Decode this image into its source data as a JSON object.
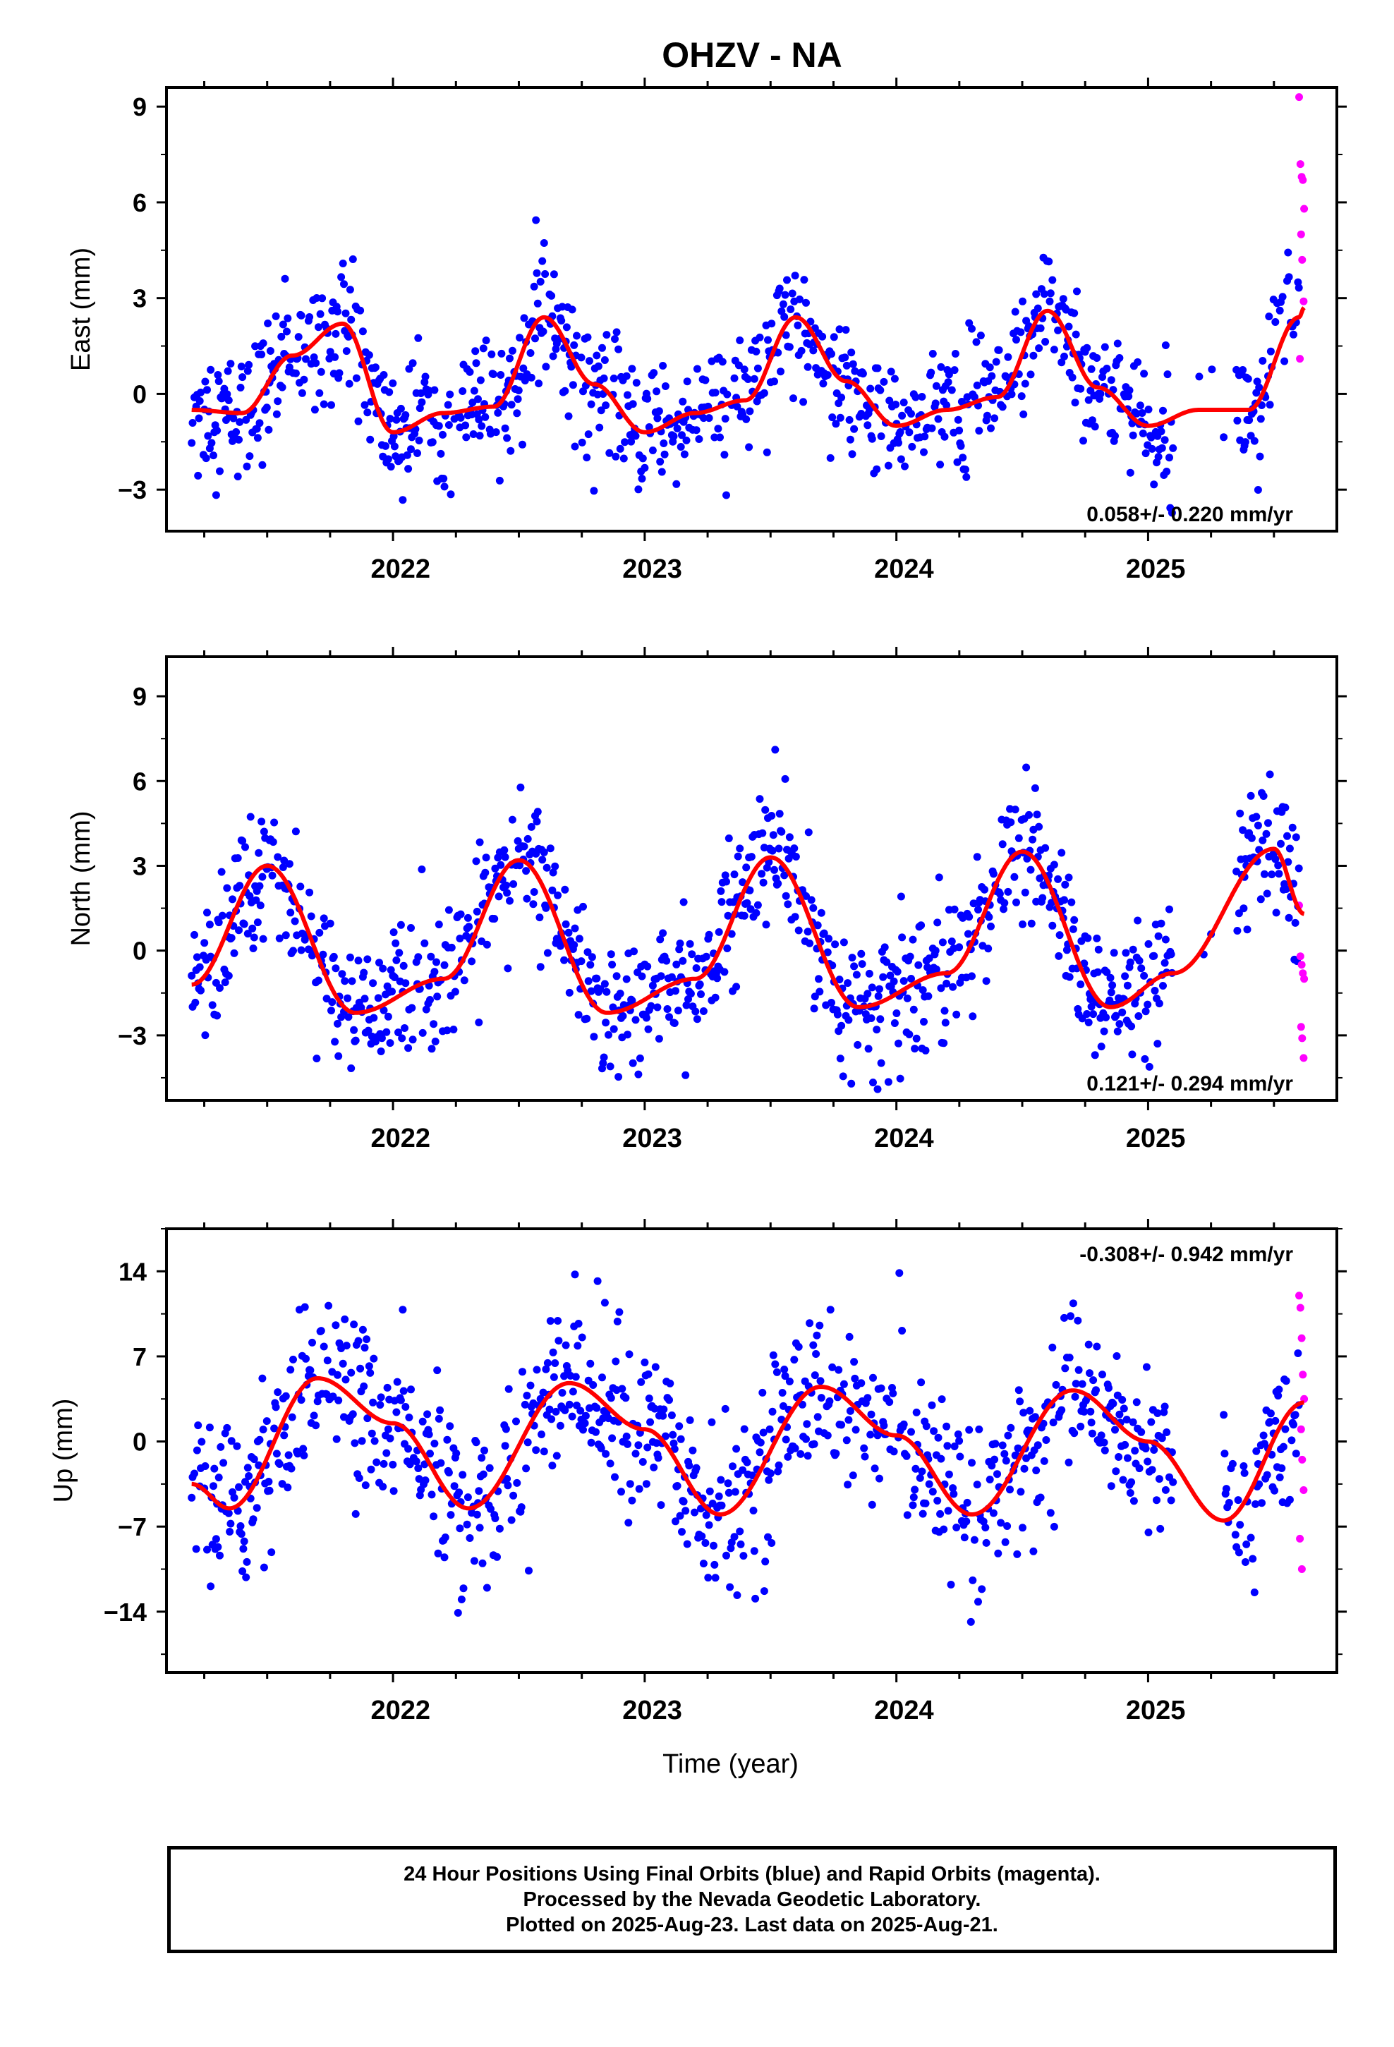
{
  "title": "OHZV - NA",
  "caption": [
    "24 Hour Positions Using Final Orbits (blue) and Rapid Orbits (magenta).",
    "Processed by the Nevada Geodetic Laboratory.",
    "Plotted on 2025-Aug-23. Last data on 2025-Aug-21."
  ],
  "colors": {
    "final": "#0000ff",
    "rapid": "#ff00ff",
    "model": "#ff0000"
  },
  "chart_data": [
    {
      "type": "scatter",
      "ylabel": "East (mm)",
      "xlabel": "",
      "xlim": [
        2021.1,
        2025.75
      ],
      "ylim": [
        -4.3,
        9.6
      ],
      "yticks": [
        9,
        6,
        3,
        0,
        -3
      ],
      "ytick_labels": [
        "9",
        "6",
        "3",
        "0",
        "−3"
      ],
      "xticks": [
        2022,
        2023,
        2024,
        2025
      ],
      "xtick_labels": [
        "2022",
        "2023",
        "2024",
        "2025"
      ],
      "rate_label": "0.058+/- 0.220 mm/yr",
      "rate_position": "bottom-right",
      "model": {
        "x": [
          2021.2,
          2021.4,
          2021.6,
          2021.8,
          2022.0,
          2022.2,
          2022.4,
          2022.6,
          2022.8,
          2023.0,
          2023.2,
          2023.4,
          2023.6,
          2023.8,
          2024.0,
          2024.2,
          2024.4,
          2024.6,
          2024.8,
          2025.0,
          2025.2,
          2025.4,
          2025.6,
          2025.62
        ],
        "y": [
          -0.5,
          -0.6,
          1.2,
          2.2,
          -1.2,
          -0.6,
          -0.4,
          2.4,
          0.3,
          -1.2,
          -0.6,
          -0.2,
          2.4,
          0.4,
          -1.0,
          -0.5,
          -0.1,
          2.6,
          0.2,
          -1.0,
          -0.5,
          -0.5,
          2.4,
          2.7
        ]
      },
      "final_range": [
        2021.2,
        2025.6
      ],
      "rapid": {
        "x": [
          2025.6,
          2025.605,
          2025.61,
          2025.615,
          2025.62,
          2025.608,
          2025.612,
          2025.618,
          2025.603
        ],
        "y": [
          9.3,
          7.2,
          6.8,
          6.7,
          5.8,
          5.0,
          4.2,
          2.9,
          1.1
        ]
      }
    },
    {
      "type": "scatter",
      "ylabel": "North (mm)",
      "xlabel": "",
      "xlim": [
        2021.1,
        2025.75
      ],
      "ylim": [
        -5.3,
        10.4
      ],
      "yticks": [
        9,
        6,
        3,
        0,
        -3
      ],
      "ytick_labels": [
        "9",
        "6",
        "3",
        "0",
        "−3"
      ],
      "xticks": [
        2022,
        2023,
        2024,
        2025
      ],
      "xtick_labels": [
        "2022",
        "2023",
        "2024",
        "2025"
      ],
      "rate_label": "0.121+/- 0.294 mm/yr",
      "rate_position": "bottom-right",
      "model": {
        "x": [
          2021.2,
          2021.5,
          2021.85,
          2022.2,
          2022.5,
          2022.85,
          2023.2,
          2023.5,
          2023.85,
          2024.2,
          2024.5,
          2024.85,
          2025.1,
          2025.5,
          2025.62
        ],
        "y": [
          -1.2,
          3.0,
          -2.2,
          -1.0,
          3.2,
          -2.2,
          -1.0,
          3.3,
          -2.0,
          -0.8,
          3.5,
          -2.0,
          -0.8,
          3.6,
          1.3
        ]
      },
      "final_range": [
        2021.2,
        2025.6
      ],
      "rapid": {
        "x": [
          2025.6,
          2025.605,
          2025.61,
          2025.615,
          2025.62,
          2025.608,
          2025.612,
          2025.618
        ],
        "y": [
          1.6,
          -0.2,
          -0.5,
          -0.8,
          -1.0,
          -2.7,
          -3.1,
          -3.8
        ]
      }
    },
    {
      "type": "scatter",
      "ylabel": "Up (mm)",
      "xlabel": "Time (year)",
      "xlim": [
        2021.1,
        2025.75
      ],
      "ylim": [
        -19,
        17.5
      ],
      "yticks": [
        14,
        7,
        0,
        -7,
        -14
      ],
      "ytick_labels": [
        "14",
        "7",
        "0",
        "−7",
        "−14"
      ],
      "xticks": [
        2022,
        2023,
        2024,
        2025
      ],
      "xtick_labels": [
        "2022",
        "2023",
        "2024",
        "2025"
      ],
      "rate_label": "-0.308+/- 0.942 mm/yr",
      "rate_position": "top-right",
      "model": {
        "x": [
          2021.2,
          2021.35,
          2021.7,
          2022.0,
          2022.3,
          2022.7,
          2023.0,
          2023.3,
          2023.7,
          2024.0,
          2024.3,
          2024.7,
          2025.0,
          2025.3,
          2025.62
        ],
        "y": [
          -3.5,
          -5.5,
          5.2,
          1.5,
          -5.5,
          4.8,
          1.0,
          -6.0,
          4.5,
          0.5,
          -6.0,
          4.2,
          0.0,
          -6.5,
          3.2
        ]
      },
      "final_range": [
        2021.2,
        2025.6
      ],
      "rapid": {
        "x": [
          2025.6,
          2025.605,
          2025.61,
          2025.615,
          2025.62,
          2025.608,
          2025.612,
          2025.618,
          2025.603,
          2025.611
        ],
        "y": [
          12.0,
          11.0,
          8.5,
          5.5,
          3.5,
          1.0,
          -1.5,
          -4.0,
          -8.0,
          -10.5
        ]
      }
    }
  ]
}
